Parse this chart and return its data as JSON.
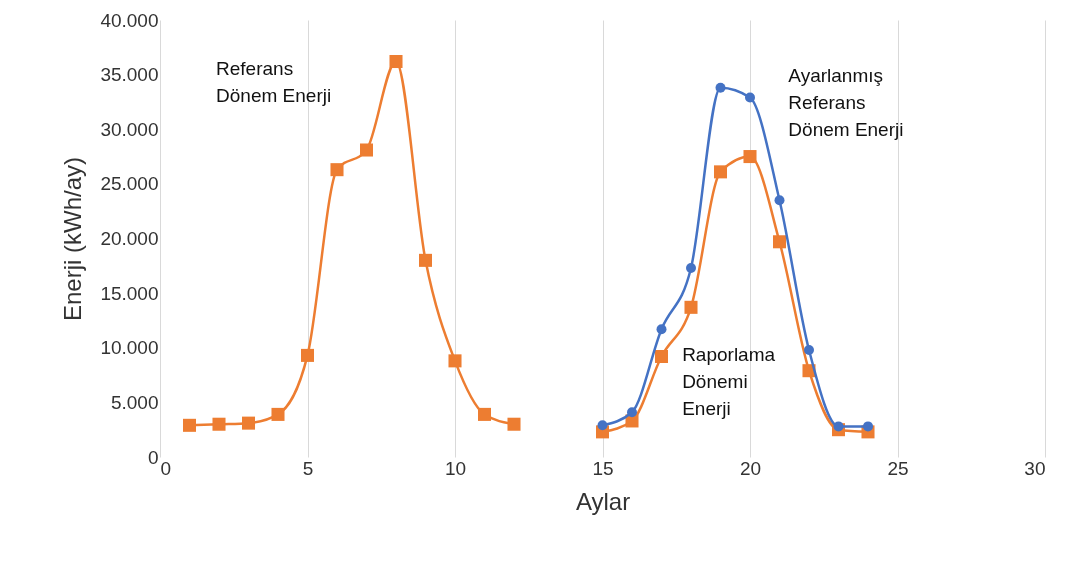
{
  "chart_data": {
    "type": "line",
    "xlabel": "Aylar",
    "ylabel": "Enerji (kWh/ay)",
    "xlim": [
      0,
      30
    ],
    "xticks": [
      0,
      5,
      10,
      15,
      20,
      25,
      30
    ],
    "ylim": [
      0,
      40000
    ],
    "yticks": [
      0,
      {
        "value": 5000,
        "label": "5.000"
      },
      {
        "value": 10000,
        "label": "10.000"
      },
      {
        "value": 15000,
        "label": "15.000"
      },
      {
        "value": 20000,
        "label": "20.000"
      },
      {
        "value": 25000,
        "label": "25.000"
      },
      {
        "value": 30000,
        "label": "30.000"
      },
      {
        "value": 35000,
        "label": "35.000"
      },
      {
        "value": 40000,
        "label": "40.000"
      }
    ],
    "grid": "x",
    "series": [
      {
        "name": "Referans Dönem Enerji",
        "color": "#ed7d31",
        "marker": "square",
        "x": [
          1,
          2,
          3,
          4,
          5,
          6,
          7,
          8,
          9,
          10,
          11,
          12
        ],
        "values": [
          2900,
          3000,
          3100,
          3900,
          9300,
          26300,
          28100,
          36200,
          18000,
          8800,
          3900,
          3000
        ]
      },
      {
        "name": "Raporlama Dönemi Enerji",
        "color": "#ed7d31",
        "marker": "square",
        "x": [
          15,
          16,
          17,
          18,
          19,
          20,
          21,
          22,
          23,
          24
        ],
        "values": [
          2300,
          3300,
          9200,
          13700,
          26100,
          27500,
          19700,
          7900,
          2500,
          2300
        ]
      },
      {
        "name": "Ayarlanmış Referans Dönem Enerji",
        "color": "#4472c4",
        "marker": "circle",
        "x": [
          15,
          16,
          17,
          18,
          19,
          20,
          21,
          22,
          23,
          24
        ],
        "values": [
          2900,
          4100,
          11700,
          17300,
          33800,
          32900,
          23500,
          9800,
          2800,
          2800
        ]
      }
    ]
  }
}
